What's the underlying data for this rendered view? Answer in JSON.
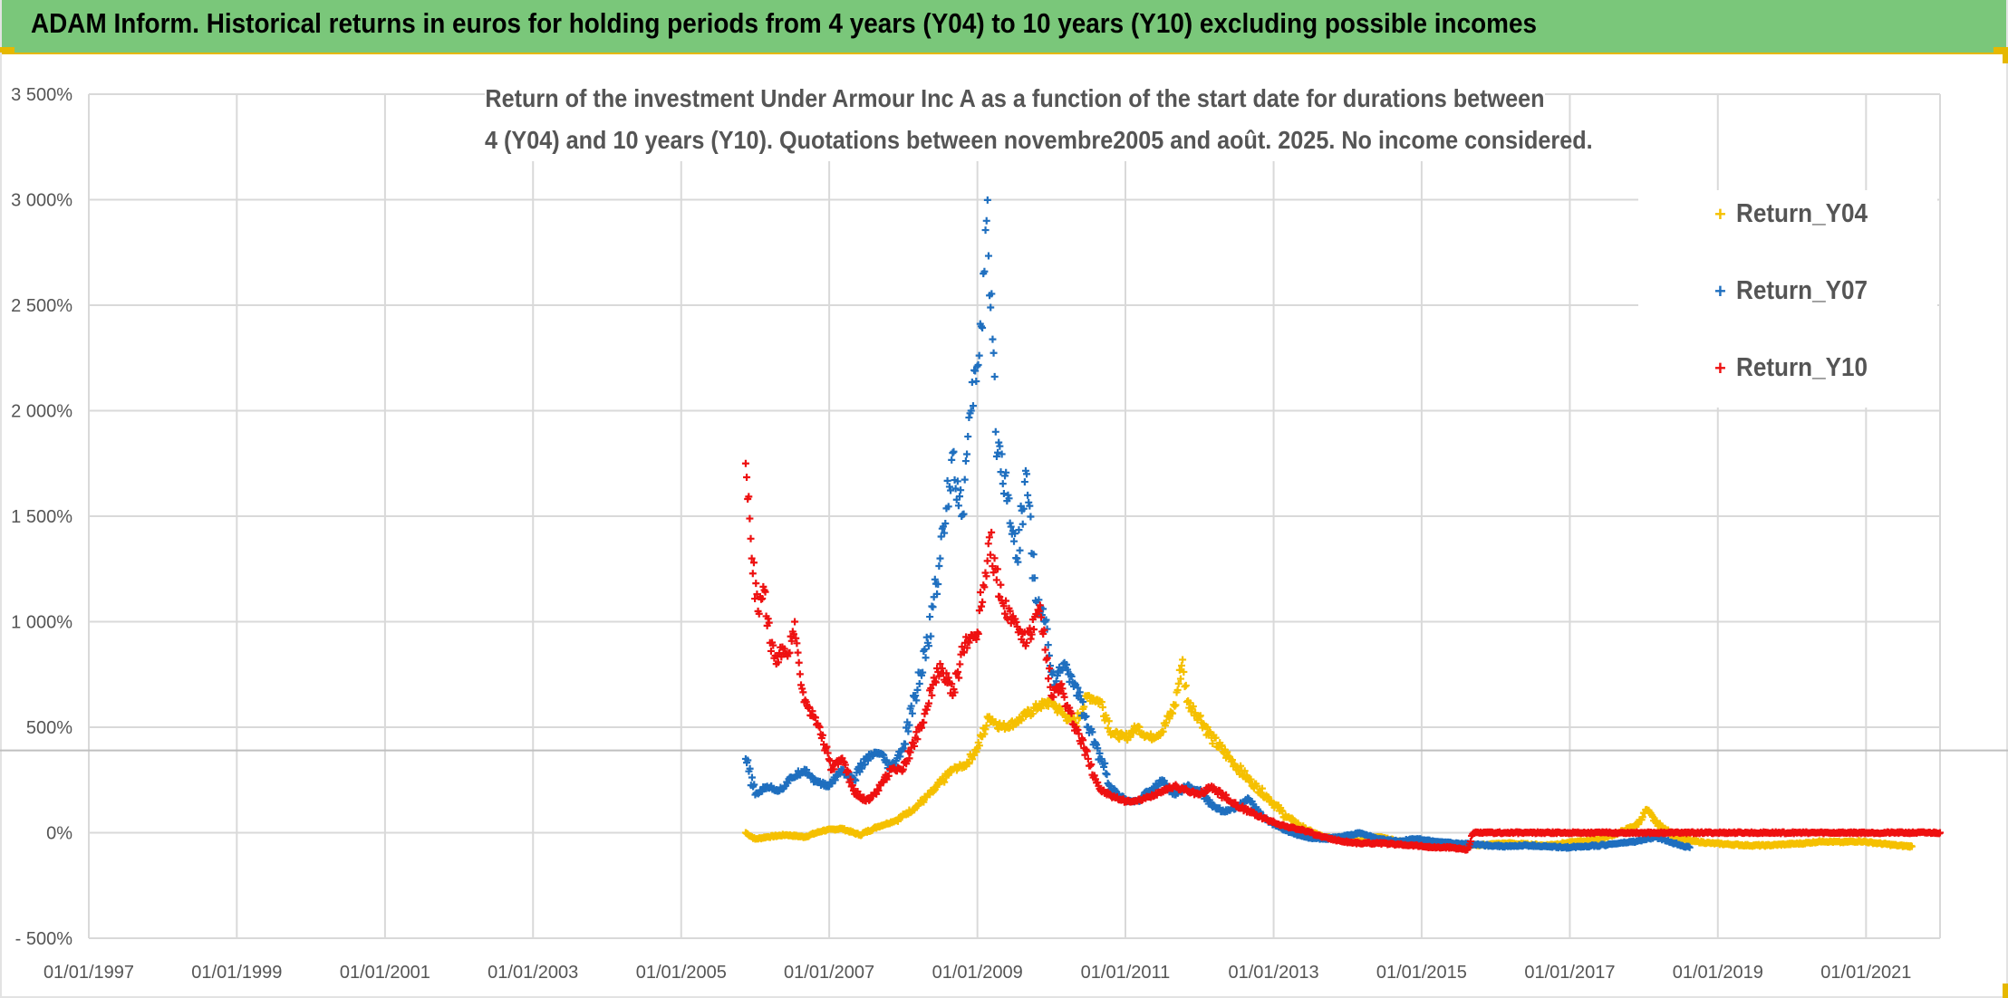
{
  "header": {
    "title": "ADAM Inform. Historical returns in euros for holding periods from 4 years (Y04) to 10 years (Y10) excluding possible incomes"
  },
  "colors": {
    "header_bg": "#7ac77a",
    "accent_border": "#e6b800",
    "Return_Y04": "#f5c000",
    "Return_Y07": "#1f6fbf",
    "Return_Y10": "#ee1111"
  },
  "chart_data": {
    "type": "scatter",
    "title_line1": "Return of the investment Under Armour Inc A as a function of the start date for durations between",
    "title_line2": "4 (Y04) and 10 years (Y10). Quotations between novembre2005 and août. 2025. No income considered.",
    "xlabel": "",
    "ylabel": "",
    "x_tick_labels": [
      "01/01/1997",
      "01/01/1999",
      "01/01/2001",
      "01/01/2003",
      "01/01/2005",
      "01/01/2007",
      "01/01/2009",
      "01/01/2011",
      "01/01/2013",
      "01/01/2015",
      "01/01/2017",
      "01/01/2019",
      "01/01/2021"
    ],
    "xlim": [
      "1997-01-01",
      "2022-01-01"
    ],
    "y_tick_labels": [
      "- 500%",
      "0%",
      "500%",
      "1 000%",
      "1 500%",
      "2 000%",
      "2 500%",
      "3 000%",
      "3 500%"
    ],
    "y_ticks": [
      -500,
      0,
      500,
      1000,
      1500,
      2000,
      2500,
      3000,
      3500
    ],
    "ylim": [
      -500,
      3500
    ],
    "reference_line_y": 390,
    "grid": true,
    "legend_position": "top-right",
    "marker": "+",
    "series": [
      {
        "name": "Return_Y04",
        "color": "#f5c000",
        "x": [
          "2005-11-15",
          "2006-01-01",
          "2006-03-01",
          "2006-06-01",
          "2006-09-01",
          "2006-12-01",
          "2007-03-01",
          "2007-06-01",
          "2007-09-01",
          "2007-12-01",
          "2008-03-01",
          "2008-06-01",
          "2008-09-01",
          "2008-11-01",
          "2009-01-01",
          "2009-03-01",
          "2009-05-01",
          "2009-07-01",
          "2009-09-01",
          "2009-11-01",
          "2010-01-01",
          "2010-03-01",
          "2010-05-01",
          "2010-07-01",
          "2010-09-01",
          "2010-11-01",
          "2011-01-01",
          "2011-03-01",
          "2011-05-01",
          "2011-07-01",
          "2011-09-01",
          "2011-10-10",
          "2011-11-01",
          "2012-01-01",
          "2012-03-01",
          "2012-06-01",
          "2012-09-01",
          "2012-12-01",
          "2013-03-01",
          "2013-06-01",
          "2013-09-01",
          "2013-12-01",
          "2014-03-01",
          "2014-06-01",
          "2014-09-01",
          "2014-12-01",
          "2015-03-01",
          "2015-06-01",
          "2015-09-01",
          "2015-12-01",
          "2016-03-01",
          "2016-06-01",
          "2016-09-01",
          "2016-12-01",
          "2017-03-01",
          "2017-06-01",
          "2017-09-01",
          "2017-12-01",
          "2018-01-15",
          "2018-03-01",
          "2018-06-01",
          "2018-09-01",
          "2018-12-01",
          "2019-03-01",
          "2019-06-01",
          "2019-09-01",
          "2019-12-01",
          "2020-03-01",
          "2020-06-01",
          "2020-09-01",
          "2020-12-01",
          "2021-03-01",
          "2021-06-01",
          "2021-08-15"
        ],
        "y": [
          0,
          -30,
          -20,
          -10,
          -20,
          10,
          20,
          -10,
          30,
          60,
          120,
          200,
          300,
          320,
          400,
          550,
          500,
          520,
          560,
          600,
          620,
          560,
          520,
          650,
          620,
          470,
          450,
          500,
          450,
          480,
          600,
          820,
          620,
          550,
          450,
          350,
          250,
          170,
          80,
          20,
          -20,
          -30,
          -40,
          -20,
          -40,
          -50,
          -50,
          -55,
          -60,
          -55,
          -50,
          -55,
          -60,
          -50,
          -40,
          -30,
          0,
          40,
          110,
          50,
          -20,
          -40,
          -50,
          -55,
          -60,
          -60,
          -55,
          -50,
          -40,
          -45,
          -40,
          -50,
          -60,
          -65
        ]
      },
      {
        "name": "Return_Y07",
        "color": "#1f6fbf",
        "x": [
          "2005-11-15",
          "2006-01-01",
          "2006-03-01",
          "2006-05-01",
          "2006-07-01",
          "2006-09-01",
          "2006-11-01",
          "2007-01-01",
          "2007-03-01",
          "2007-05-01",
          "2007-07-01",
          "2007-09-01",
          "2007-11-01",
          "2008-01-01",
          "2008-03-01",
          "2008-05-01",
          "2008-07-01",
          "2008-09-01",
          "2008-10-15",
          "2008-12-01",
          "2009-01-20",
          "2009-02-15",
          "2009-04-01",
          "2009-06-01",
          "2009-07-15",
          "2009-09-01",
          "2009-10-15",
          "2009-12-01",
          "2010-01-15",
          "2010-03-01",
          "2010-05-01",
          "2010-07-01",
          "2010-09-01",
          "2010-11-01",
          "2011-01-01",
          "2011-03-01",
          "2011-05-01",
          "2011-07-01",
          "2011-09-01",
          "2011-11-01",
          "2012-01-01",
          "2012-03-01",
          "2012-05-01",
          "2012-07-01",
          "2012-09-01",
          "2012-11-01",
          "2013-01-01",
          "2013-03-01",
          "2013-06-01",
          "2013-09-01",
          "2013-12-01",
          "2014-03-01",
          "2014-06-01",
          "2014-09-01",
          "2014-12-01",
          "2015-03-01",
          "2015-06-01",
          "2015-09-01",
          "2015-12-01",
          "2016-03-01",
          "2016-06-01",
          "2016-09-01",
          "2016-12-01",
          "2017-03-01",
          "2017-06-01",
          "2017-09-01",
          "2017-12-01",
          "2018-03-01",
          "2018-06-01",
          "2018-08-15"
        ],
        "y": [
          350,
          180,
          220,
          200,
          260,
          300,
          240,
          220,
          300,
          250,
          350,
          380,
          300,
          400,
          650,
          900,
          1300,
          1800,
          1500,
          2000,
          2400,
          2900,
          1900,
          1600,
          1300,
          1700,
          1100,
          1000,
          700,
          800,
          700,
          500,
          350,
          200,
          150,
          150,
          200,
          250,
          180,
          220,
          200,
          130,
          100,
          120,
          160,
          80,
          40,
          10,
          -20,
          -30,
          -20,
          0,
          -30,
          -40,
          -30,
          -40,
          -50,
          -55,
          -60,
          -65,
          -60,
          -65,
          -70,
          -65,
          -60,
          -50,
          -40,
          -20,
          -50,
          -70
        ]
      },
      {
        "name": "Return_Y10",
        "color": "#ee1111",
        "x": [
          "2005-11-15",
          "2005-12-15",
          "2006-01-15",
          "2006-02-15",
          "2006-03-15",
          "2006-04-15",
          "2006-05-15",
          "2006-06-15",
          "2006-07-15",
          "2006-08-15",
          "2006-09-15",
          "2006-10-15",
          "2006-11-15",
          "2006-12-15",
          "2007-01-15",
          "2007-03-01",
          "2007-05-01",
          "2007-07-01",
          "2007-09-01",
          "2007-11-01",
          "2008-01-01",
          "2008-03-01",
          "2008-05-01",
          "2008-07-01",
          "2008-09-01",
          "2008-11-01",
          "2009-01-01",
          "2009-03-01",
          "2009-05-01",
          "2009-07-01",
          "2009-09-01",
          "2009-11-01",
          "2010-01-01",
          "2010-02-15",
          "2010-03-15",
          "2010-05-01",
          "2010-07-01",
          "2010-09-01",
          "2010-11-01",
          "2011-01-01",
          "2011-03-01",
          "2011-05-01",
          "2011-07-01",
          "2011-09-01",
          "2011-11-01",
          "2012-01-01",
          "2012-03-01",
          "2012-06-01",
          "2012-09-01",
          "2012-12-01",
          "2013-03-01",
          "2013-06-01",
          "2013-09-01",
          "2013-12-01",
          "2014-03-01",
          "2014-06-01",
          "2014-09-01",
          "2014-12-01",
          "2015-03-01",
          "2015-06-01",
          "2015-08-15",
          "2015-09-15",
          "2016-01-01",
          "2016-06-01",
          "2017-01-01",
          "2017-06-01",
          "2018-01-01",
          "2018-06-01",
          "2019-01-01",
          "2019-06-01",
          "2020-01-01",
          "2020-06-01",
          "2021-01-01",
          "2021-06-01",
          "2022-01-01"
        ],
        "y": [
          1750,
          1300,
          1050,
          1150,
          900,
          800,
          880,
          850,
          1000,
          700,
          600,
          550,
          500,
          400,
          300,
          350,
          200,
          150,
          200,
          300,
          300,
          450,
          600,
          800,
          650,
          900,
          950,
          1400,
          1100,
          1000,
          900,
          1050,
          650,
          700,
          600,
          500,
          350,
          200,
          170,
          150,
          150,
          170,
          200,
          220,
          200,
          180,
          220,
          150,
          100,
          60,
          30,
          10,
          -20,
          -40,
          -50,
          -50,
          -55,
          -60,
          -70,
          -70,
          -80,
          0,
          0,
          0,
          0,
          0,
          0,
          0,
          0,
          0,
          0,
          0,
          0,
          0,
          0
        ]
      }
    ]
  }
}
